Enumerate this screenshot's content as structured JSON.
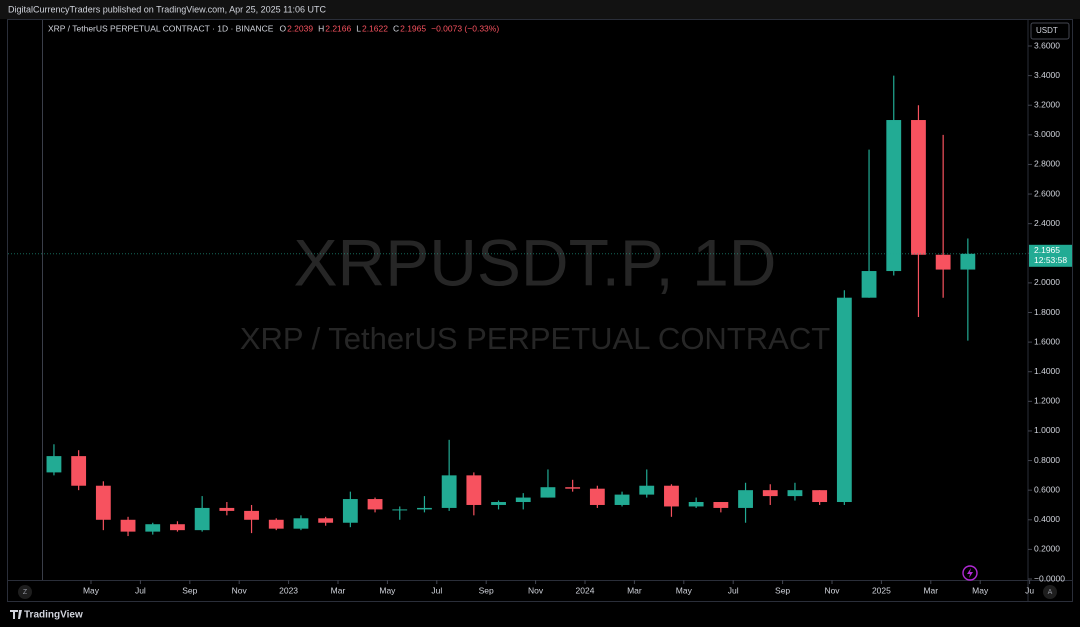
{
  "header": {
    "published": "DigitalCurrencyTraders published on TradingView.com, Apr 25, 2025 11:06 UTC"
  },
  "legend": {
    "symbol": "XRP / TetherUS PERPETUAL CONTRACT · 1D · BINANCE",
    "ohlc": [
      {
        "key": "O",
        "value": "2.2039"
      },
      {
        "key": "H",
        "value": "2.2166"
      },
      {
        "key": "L",
        "value": "2.1622"
      },
      {
        "key": "C",
        "value": "2.1965"
      }
    ],
    "change": "−0.0073 (−0.33%)"
  },
  "watermark": {
    "ticker": "XRPUSDT.P, 1D",
    "description": "XRP / TetherUS PERPETUAL CONTRACT"
  },
  "footer": {
    "brand": "TradingView"
  },
  "chart_data": {
    "type": "candlestick",
    "currency": "USDT",
    "x": [
      "2022-03",
      "2022-04",
      "2022-05",
      "2022-06",
      "2022-07",
      "2022-08",
      "2022-09",
      "2022-10",
      "2022-11",
      "2022-12",
      "2023-01",
      "2023-02",
      "2023-03",
      "2023-04",
      "2023-05",
      "2023-06",
      "2023-07",
      "2023-08",
      "2023-09",
      "2023-10",
      "2023-11",
      "2023-12",
      "2024-01",
      "2024-02",
      "2024-03",
      "2024-04",
      "2024-05",
      "2024-06",
      "2024-07",
      "2024-08",
      "2024-09",
      "2024-10",
      "2024-11",
      "2024-12",
      "2025-01",
      "2025-02",
      "2025-03",
      "2025-04"
    ],
    "open": [
      0.72,
      0.83,
      0.63,
      0.4,
      0.32,
      0.37,
      0.33,
      0.48,
      0.46,
      0.4,
      0.34,
      0.41,
      0.38,
      0.54,
      0.47,
      0.47,
      0.48,
      0.7,
      0.5,
      0.52,
      0.55,
      0.62,
      0.61,
      0.5,
      0.57,
      0.63,
      0.49,
      0.52,
      0.48,
      0.6,
      0.56,
      0.6,
      0.52,
      1.9,
      2.08,
      3.1,
      2.19,
      2.09
    ],
    "high": [
      0.91,
      0.87,
      0.66,
      0.42,
      0.38,
      0.39,
      0.56,
      0.52,
      0.5,
      0.41,
      0.43,
      0.42,
      0.59,
      0.55,
      0.49,
      0.56,
      0.94,
      0.72,
      0.53,
      0.58,
      0.74,
      0.67,
      0.63,
      0.59,
      0.74,
      0.64,
      0.55,
      0.52,
      0.65,
      0.64,
      0.65,
      0.6,
      1.95,
      2.9,
      3.4,
      3.2,
      3.0,
      2.3
    ],
    "low": [
      0.7,
      0.6,
      0.33,
      0.29,
      0.3,
      0.32,
      0.32,
      0.43,
      0.31,
      0.33,
      0.33,
      0.36,
      0.35,
      0.45,
      0.4,
      0.45,
      0.46,
      0.43,
      0.47,
      0.47,
      0.55,
      0.59,
      0.48,
      0.49,
      0.55,
      0.42,
      0.48,
      0.45,
      0.38,
      0.5,
      0.53,
      0.5,
      0.5,
      1.9,
      2.05,
      1.77,
      1.9,
      1.61
    ],
    "close": [
      0.83,
      0.63,
      0.4,
      0.32,
      0.37,
      0.33,
      0.48,
      0.46,
      0.4,
      0.34,
      0.41,
      0.38,
      0.54,
      0.47,
      0.47,
      0.48,
      0.7,
      0.5,
      0.52,
      0.55,
      0.62,
      0.61,
      0.5,
      0.57,
      0.63,
      0.49,
      0.52,
      0.48,
      0.6,
      0.56,
      0.6,
      0.52,
      1.9,
      2.08,
      3.1,
      2.19,
      2.09,
      2.1965
    ],
    "up_color": "#22ab94",
    "down_color": "#f7525f",
    "ylim": [
      0,
      3.6
    ],
    "yticks": [
      {
        "value": 0,
        "label": "−0.0000"
      },
      {
        "value": 0.2,
        "label": "0.2000"
      },
      {
        "value": 0.4,
        "label": "0.4000"
      },
      {
        "value": 0.6,
        "label": "0.6000"
      },
      {
        "value": 0.8,
        "label": "0.8000"
      },
      {
        "value": 1.0,
        "label": "1.0000"
      },
      {
        "value": 1.2,
        "label": "1.2000"
      },
      {
        "value": 1.4,
        "label": "1.4000"
      },
      {
        "value": 1.6,
        "label": "1.6000"
      },
      {
        "value": 1.8,
        "label": "1.8000"
      },
      {
        "value": 2.0,
        "label": "2.0000"
      },
      {
        "value": 2.2,
        "label": "2.2000"
      },
      {
        "value": 2.4,
        "label": "2.4000"
      },
      {
        "value": 2.6,
        "label": "2.6000"
      },
      {
        "value": 2.8,
        "label": "2.8000"
      },
      {
        "value": 3.0,
        "label": "3.0000"
      },
      {
        "value": 3.2,
        "label": "3.2000"
      },
      {
        "value": 3.4,
        "label": "3.4000"
      },
      {
        "value": 3.6,
        "label": "3.6000"
      }
    ],
    "xticks": [
      {
        "value": "2022-05",
        "label": "May"
      },
      {
        "value": "2022-07",
        "label": "Jul"
      },
      {
        "value": "2022-09",
        "label": "Sep"
      },
      {
        "value": "2022-11",
        "label": "Nov"
      },
      {
        "value": "2023-01",
        "label": "2023"
      },
      {
        "value": "2023-03",
        "label": "Mar"
      },
      {
        "value": "2023-05",
        "label": "May"
      },
      {
        "value": "2023-07",
        "label": "Jul"
      },
      {
        "value": "2023-09",
        "label": "Sep"
      },
      {
        "value": "2023-11",
        "label": "Nov"
      },
      {
        "value": "2024-01",
        "label": "2024"
      },
      {
        "value": "2024-03",
        "label": "Mar"
      },
      {
        "value": "2024-05",
        "label": "May"
      },
      {
        "value": "2024-07",
        "label": "Jul"
      },
      {
        "value": "2024-09",
        "label": "Sep"
      },
      {
        "value": "2024-11",
        "label": "Nov"
      },
      {
        "value": "2025-01",
        "label": "2025"
      },
      {
        "value": "2025-03",
        "label": "Mar"
      },
      {
        "value": "2025-05",
        "label": "May"
      },
      {
        "value": "2025-07",
        "label": "Ju"
      }
    ],
    "grid": false,
    "countdown": "12:53:58"
  }
}
